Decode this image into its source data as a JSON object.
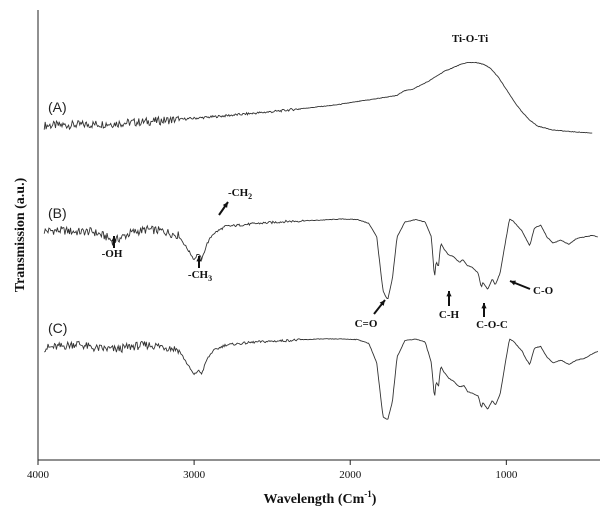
{
  "chart_data": {
    "type": "line",
    "title": "",
    "xlabel": "Wavelength (Cm",
    "xlabel_sup": "-1",
    "xlabel_close": ")",
    "ylabel": "Transmission (a.u.)",
    "xlim": [
      4000,
      400
    ],
    "x_ticks": [
      "4000",
      "3000",
      "2000",
      "1000"
    ],
    "x_tick_values": [
      4000,
      3000,
      2000,
      1000
    ],
    "grid": false,
    "legend": "none",
    "series": [
      {
        "name": "(A)",
        "points": [
          [
            3960,
            0.15
          ],
          [
            3850,
            0.16
          ],
          [
            3700,
            0.18
          ],
          [
            3500,
            0.22
          ],
          [
            3300,
            0.28
          ],
          [
            3100,
            0.35
          ],
          [
            2900,
            0.43
          ],
          [
            2700,
            0.52
          ],
          [
            2500,
            0.61
          ],
          [
            2300,
            0.72
          ],
          [
            2100,
            0.83
          ],
          [
            1950,
            0.95
          ],
          [
            1800,
            1.07
          ],
          [
            1700,
            1.15
          ],
          [
            1660,
            1.3
          ],
          [
            1600,
            1.36
          ],
          [
            1500,
            1.62
          ],
          [
            1400,
            1.95
          ],
          [
            1300,
            2.17
          ],
          [
            1250,
            2.25
          ],
          [
            1200,
            2.25
          ],
          [
            1150,
            2.2
          ],
          [
            1100,
            2.05
          ],
          [
            1050,
            1.75
          ],
          [
            1000,
            1.35
          ],
          [
            950,
            0.95
          ],
          [
            900,
            0.6
          ],
          [
            850,
            0.33
          ],
          [
            800,
            0.13
          ],
          [
            700,
            0.0
          ],
          [
            600,
            -0.05
          ],
          [
            450,
            -0.1
          ]
        ]
      },
      {
        "name": "(B)",
        "points": [
          [
            3960,
            0.0
          ],
          [
            3850,
            0.02
          ],
          [
            3750,
            -0.03
          ],
          [
            3650,
            -0.02
          ],
          [
            3560,
            -0.2
          ],
          [
            3520,
            -0.35
          ],
          [
            3480,
            -0.25
          ],
          [
            3400,
            -0.05
          ],
          [
            3300,
            0.05
          ],
          [
            3200,
            0.0
          ],
          [
            3100,
            -0.15
          ],
          [
            3030,
            -0.7
          ],
          [
            3000,
            -0.95
          ],
          [
            2975,
            -0.75
          ],
          [
            2950,
            -0.95
          ],
          [
            2920,
            -0.45
          ],
          [
            2880,
            -0.1
          ],
          [
            2800,
            0.15
          ],
          [
            2600,
            0.25
          ],
          [
            2400,
            0.32
          ],
          [
            2200,
            0.36
          ],
          [
            2050,
            0.4
          ],
          [
            1950,
            0.38
          ],
          [
            1880,
            0.25
          ],
          [
            1830,
            -0.2
          ],
          [
            1790,
            -2.0
          ],
          [
            1760,
            -2.3
          ],
          [
            1730,
            -1.6
          ],
          [
            1700,
            -0.2
          ],
          [
            1650,
            0.3
          ],
          [
            1580,
            0.38
          ],
          [
            1520,
            0.3
          ],
          [
            1480,
            -0.2
          ],
          [
            1460,
            -1.6
          ],
          [
            1450,
            -1.0
          ],
          [
            1435,
            -1.2
          ],
          [
            1420,
            -0.4
          ],
          [
            1400,
            -0.6
          ],
          [
            1370,
            -0.8
          ],
          [
            1340,
            -0.85
          ],
          [
            1300,
            -1.05
          ],
          [
            1280,
            -0.95
          ],
          [
            1250,
            -1.15
          ],
          [
            1220,
            -1.2
          ],
          [
            1180,
            -1.4
          ],
          [
            1160,
            -1.9
          ],
          [
            1150,
            -1.7
          ],
          [
            1120,
            -1.95
          ],
          [
            1090,
            -1.6
          ],
          [
            1070,
            -1.8
          ],
          [
            1040,
            -1.4
          ],
          [
            1000,
            -0.2
          ],
          [
            980,
            0.4
          ],
          [
            960,
            0.35
          ],
          [
            900,
            0.0
          ],
          [
            870,
            -0.3
          ],
          [
            850,
            -0.5
          ],
          [
            820,
            0.1
          ],
          [
            780,
            0.2
          ],
          [
            740,
            -0.2
          ],
          [
            700,
            -0.4
          ],
          [
            650,
            -0.3
          ],
          [
            600,
            -0.45
          ],
          [
            550,
            -0.25
          ],
          [
            500,
            -0.2
          ],
          [
            450,
            -0.15
          ],
          [
            410,
            -0.2
          ]
        ]
      },
      {
        "name": "(C)",
        "points": [
          [
            3960,
            0.0
          ],
          [
            3850,
            0.05
          ],
          [
            3750,
            0.15
          ],
          [
            3650,
            0.0
          ],
          [
            3500,
            -0.05
          ],
          [
            3400,
            0.05
          ],
          [
            3300,
            0.1
          ],
          [
            3200,
            0.05
          ],
          [
            3100,
            -0.05
          ],
          [
            3030,
            -0.65
          ],
          [
            3000,
            -0.9
          ],
          [
            2975,
            -0.75
          ],
          [
            2950,
            -0.85
          ],
          [
            2920,
            -0.4
          ],
          [
            2880,
            -0.1
          ],
          [
            2800,
            0.1
          ],
          [
            2600,
            0.2
          ],
          [
            2400,
            0.25
          ],
          [
            2200,
            0.3
          ],
          [
            2050,
            0.3
          ],
          [
            1950,
            0.28
          ],
          [
            1880,
            0.15
          ],
          [
            1830,
            -0.5
          ],
          [
            1790,
            -2.3
          ],
          [
            1760,
            -2.4
          ],
          [
            1730,
            -1.8
          ],
          [
            1700,
            -0.3
          ],
          [
            1650,
            0.25
          ],
          [
            1580,
            0.3
          ],
          [
            1520,
            0.2
          ],
          [
            1480,
            -0.5
          ],
          [
            1460,
            -1.7
          ],
          [
            1450,
            -1.1
          ],
          [
            1435,
            -1.3
          ],
          [
            1420,
            -0.6
          ],
          [
            1400,
            -0.8
          ],
          [
            1370,
            -1.0
          ],
          [
            1340,
            -1.1
          ],
          [
            1300,
            -1.3
          ],
          [
            1270,
            -1.25
          ],
          [
            1250,
            -1.45
          ],
          [
            1220,
            -1.5
          ],
          [
            1180,
            -1.6
          ],
          [
            1160,
            -2.0
          ],
          [
            1150,
            -1.8
          ],
          [
            1120,
            -2.05
          ],
          [
            1090,
            -1.75
          ],
          [
            1070,
            -1.9
          ],
          [
            1040,
            -1.55
          ],
          [
            1000,
            -0.3
          ],
          [
            980,
            0.3
          ],
          [
            960,
            0.25
          ],
          [
            900,
            -0.1
          ],
          [
            870,
            -0.4
          ],
          [
            850,
            -0.55
          ],
          [
            820,
            0.0
          ],
          [
            780,
            0.05
          ],
          [
            740,
            -0.3
          ],
          [
            700,
            -0.5
          ],
          [
            650,
            -0.4
          ],
          [
            600,
            -0.55
          ],
          [
            550,
            -0.4
          ],
          [
            500,
            -0.35
          ],
          [
            450,
            -0.2
          ],
          [
            410,
            -0.1
          ]
        ]
      }
    ],
    "annotations": [
      {
        "text": "Ti-O-Ti",
        "x": 1230,
        "series": 0
      },
      {
        "text": "-OH",
        "x": 3520,
        "series": 1
      },
      {
        "text": "-CH",
        "sub": "3",
        "x": 3000,
        "series": 1
      },
      {
        "text": "-CH",
        "sub": "2",
        "x": 2930,
        "series": 1
      },
      {
        "text": "C=O",
        "x": 1760,
        "series": 1
      },
      {
        "text": "C-H",
        "x": 1460,
        "series": 1
      },
      {
        "text": "C-O-C",
        "x": 1150,
        "series": 1
      },
      {
        "text": "C-O",
        "x": 1040,
        "series": 1
      }
    ]
  }
}
